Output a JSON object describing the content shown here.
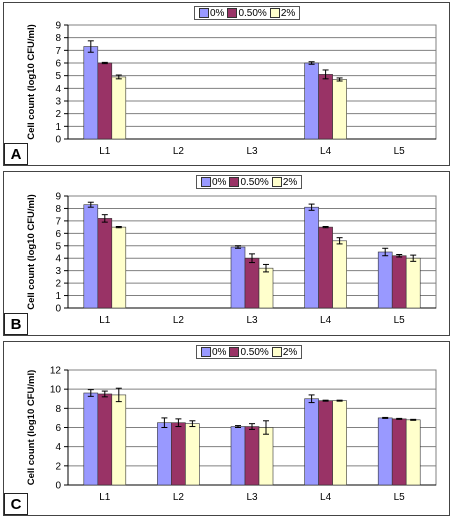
{
  "chart_data": [
    {
      "type": "bar",
      "panel_label": "A",
      "categories": [
        "L1",
        "L2",
        "L3",
        "L4",
        "L5"
      ],
      "series": [
        {
          "name": "0%",
          "values": [
            7.3,
            null,
            null,
            6.0,
            null
          ],
          "errors": [
            0.45,
            null,
            null,
            0.1,
            null
          ]
        },
        {
          "name": "0.50%",
          "values": [
            6.0,
            null,
            null,
            5.1,
            null
          ],
          "errors": [
            0.05,
            null,
            null,
            0.35,
            null
          ]
        },
        {
          "name": "2%",
          "values": [
            4.9,
            null,
            null,
            4.7,
            null
          ],
          "errors": [
            0.15,
            null,
            null,
            0.12,
            null
          ]
        }
      ],
      "ylabel": "Cell count (log10 CFU/ml)",
      "ylim": [
        0,
        9
      ],
      "yticks": [
        0,
        1,
        2,
        3,
        4,
        5,
        6,
        7,
        8,
        9
      ],
      "grid": true,
      "legend": "top"
    },
    {
      "type": "bar",
      "panel_label": "B",
      "categories": [
        "L1",
        "L2",
        "L3",
        "L4",
        "L5"
      ],
      "series": [
        {
          "name": "0%",
          "values": [
            8.3,
            null,
            4.9,
            8.1,
            4.5
          ],
          "errors": [
            0.2,
            null,
            0.1,
            0.25,
            0.3
          ]
        },
        {
          "name": "0.50%",
          "values": [
            7.2,
            null,
            4.0,
            6.5,
            4.2
          ],
          "errors": [
            0.3,
            null,
            0.35,
            0.05,
            0.1
          ]
        },
        {
          "name": "2%",
          "values": [
            6.5,
            null,
            3.2,
            5.4,
            4.0
          ],
          "errors": [
            0.05,
            null,
            0.3,
            0.25,
            0.25
          ]
        }
      ],
      "ylabel": "Cell count (log10 CFU/ml)",
      "ylim": [
        0,
        9
      ],
      "yticks": [
        0,
        1,
        2,
        3,
        4,
        5,
        6,
        7,
        8,
        9
      ],
      "grid": true,
      "legend": "top"
    },
    {
      "type": "bar",
      "panel_label": "C",
      "categories": [
        "L1",
        "L2",
        "L3",
        "L4",
        "L5"
      ],
      "series": [
        {
          "name": "0%",
          "values": [
            9.6,
            6.5,
            6.1,
            9.0,
            7.0
          ],
          "errors": [
            0.35,
            0.5,
            0.1,
            0.4,
            0.05
          ]
        },
        {
          "name": "0.50%",
          "values": [
            9.5,
            6.5,
            6.1,
            8.8,
            6.9
          ],
          "errors": [
            0.3,
            0.4,
            0.3,
            0.05,
            0.05
          ]
        },
        {
          "name": "2%",
          "values": [
            9.4,
            6.4,
            6.0,
            8.8,
            6.8
          ],
          "errors": [
            0.7,
            0.3,
            0.7,
            0.05,
            0.05
          ]
        }
      ],
      "ylabel": "Cell count (log10 CFU/ml)",
      "ylim": [
        0,
        12
      ],
      "yticks": [
        0,
        2,
        4,
        6,
        8,
        10,
        12
      ],
      "grid": true,
      "legend": "top"
    }
  ],
  "colors": {
    "series": [
      "#9999ff",
      "#993366",
      "#ffffcc"
    ],
    "plot_background": "#ffffff",
    "grid": "#808080"
  }
}
